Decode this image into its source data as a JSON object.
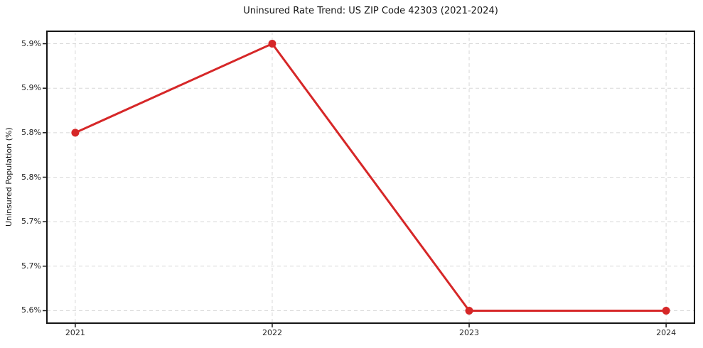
{
  "figure": {
    "background": "#ffffff"
  },
  "chart_data": {
    "type": "line",
    "title": "Uninsured Rate Trend: US ZIP Code 42303 (2021-2024)",
    "xlabel": "",
    "ylabel": "Uninsured Population (%)",
    "x": [
      2021,
      2022,
      2023,
      2024
    ],
    "values": [
      5.8,
      5.9,
      5.6,
      5.6
    ],
    "xticks": {
      "values": [
        2021,
        2022,
        2023,
        2024
      ],
      "labels": [
        "2021",
        "2022",
        "2023",
        "2024"
      ]
    },
    "yticks": {
      "values": [
        5.9,
        5.85,
        5.8,
        5.75,
        5.7,
        5.65,
        5.6
      ],
      "labels": [
        "5.9%",
        "5.9%",
        "5.8%",
        "5.8%",
        "5.7%",
        "5.7%",
        "5.6%"
      ]
    },
    "xlim": [
      2020.856,
      2024.144
    ],
    "ylim": [
      5.586,
      5.914
    ],
    "grid": true,
    "grid_style": "dashed",
    "legend_position": "none",
    "line_color": "#d62728",
    "line_width": 3,
    "marker": "circle",
    "marker_radius": 5.5,
    "grid_color": "#d8d8d8",
    "axis_color": "#151515",
    "tick_color": "#262626"
  }
}
